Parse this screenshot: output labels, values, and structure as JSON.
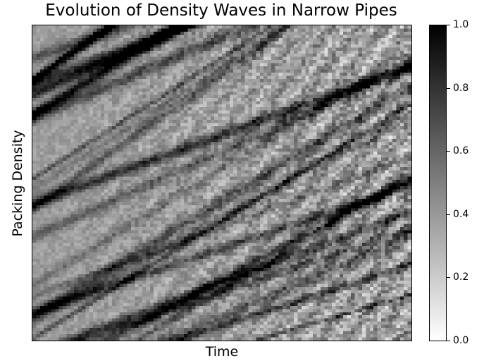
{
  "chart_data": {
    "type": "heatmap",
    "title": "Evolution of Density Waves in Narrow Pipes",
    "xlabel": "Time",
    "ylabel": "Packing Density",
    "colormap": "gray_r",
    "color_range": [
      0.0,
      1.0
    ],
    "grid_shape": {
      "rows": 100,
      "cols": 100
    },
    "colorbar": {
      "ticks": [
        "0.0",
        "0.2",
        "0.4",
        "0.6",
        "0.8",
        "1.0"
      ],
      "tick_values": [
        0.0,
        0.2,
        0.4,
        0.6,
        0.8,
        1.0
      ]
    },
    "colors": {
      "low": "#ffffff",
      "high": "#000000"
    }
  }
}
